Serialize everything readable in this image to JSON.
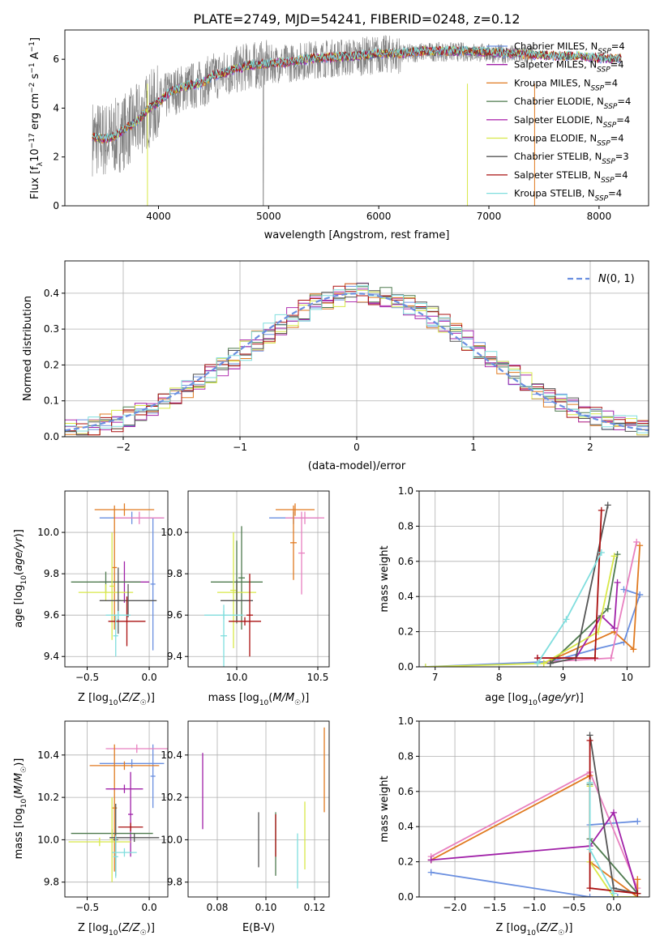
{
  "title": "PLATE=2749, MJD=54241, FIBERID=0248, z=0.12",
  "colors": {
    "chabrier_miles": "#6a8fe0",
    "salpeter_miles": "#a020a8",
    "kroupa_miles": "#e07a20",
    "chabrier_elodie": "#4e7a4e",
    "salpeter_elodie": "#b030b0",
    "kroupa_elodie": "#d8e848",
    "chabrier_stelib": "#555555",
    "salpeter_stelib": "#aa1010",
    "kroupa_stelib": "#80dede",
    "pink": "#e880c0",
    "data_grey": "#808080",
    "gauss": "#6a8fe0",
    "grid": "#b0b0b0"
  },
  "chart_data": [
    {
      "id": "spectrum",
      "type": "line",
      "title": "PLATE=2749, MJD=54241, FIBERID=0248, z=0.12",
      "xlabel": "wavelength [Angstrom, rest frame]",
      "ylabel": "Flux [f_λ 10^-17 erg cm^-2 s^-1 A^-1]",
      "xlim": [
        3150,
        8450
      ],
      "ylim": [
        0,
        7.2
      ],
      "xticks": [
        "4000",
        "5000",
        "6000",
        "7000",
        "8000"
      ],
      "yticks": [
        "0",
        "2",
        "4",
        "6"
      ],
      "grid": false,
      "legend": "upper-right",
      "legend_entries": [
        "Chabrier MILES, N_SSP=4",
        "Salpeter MILES, N_SSP=4",
        "Kroupa MILES, N_SSP=4",
        "Chabrier ELODIE, N_SSP=4",
        "Salpeter ELODIE, N_SSP=4",
        "Kroupa ELODIE, N_SSP=4",
        "Chabrier STELIB, N_SSP=3",
        "Salpeter STELIB, N_SSP=4",
        "Kroupa STELIB, N_SSP=4"
      ],
      "continuum": {
        "x": [
          3400,
          3500,
          3600,
          3700,
          3800,
          3900,
          4000,
          4100,
          4200,
          4300,
          4400,
          4500,
          4600,
          4800,
          5000,
          5200,
          5400,
          5600,
          5800,
          6000,
          6200,
          6400,
          6600,
          6800,
          7000,
          7200,
          7400,
          7600,
          7800,
          8000,
          8200
        ],
        "y": [
          2.8,
          2.7,
          2.8,
          3.1,
          3.4,
          3.9,
          4.2,
          4.6,
          4.8,
          4.9,
          5.0,
          5.3,
          5.4,
          5.7,
          5.8,
          5.85,
          6.0,
          6.05,
          6.1,
          6.2,
          6.2,
          6.3,
          6.3,
          6.3,
          6.25,
          6.2,
          6.15,
          6.1,
          6.1,
          6.0,
          6.0
        ]
      }
    },
    {
      "id": "residuals",
      "type": "bar",
      "xlabel": "(data-model)/error",
      "ylabel": "Normed distribution",
      "xlim": [
        -2.5,
        2.5
      ],
      "ylim": [
        0,
        0.49
      ],
      "xticks": [
        "−2",
        "−1",
        "0",
        "1",
        "2"
      ],
      "yticks": [
        "0.0",
        "0.1",
        "0.2",
        "0.3",
        "0.4"
      ],
      "grid": true,
      "legend": "top-right",
      "legend_entries": [
        "N(0,1)"
      ],
      "bin_width": 0.1,
      "bin_start": -2.5
    },
    {
      "id": "age-vs-Z",
      "type": "scatter",
      "xlabel": "Z [log10(Z/Z☉)]",
      "ylabel": "age [log10(age/yr)]",
      "xlim": [
        -0.68,
        0.15
      ],
      "ylim": [
        9.35,
        10.2
      ],
      "xticks": [
        "−0.5",
        "0.0"
      ],
      "yticks": [
        "9.4",
        "9.6",
        "9.8",
        "10.0"
      ],
      "grid": true,
      "points": [
        {
          "x": 0.03,
          "y": 9.75,
          "xe": 0.02,
          "ye": 0.32,
          "c": "chabrier_miles"
        },
        {
          "x": -0.14,
          "y": 10.07,
          "xe": 0.26,
          "ye": 0.03,
          "c": "chabrier_miles"
        },
        {
          "x": -0.08,
          "y": 10.07,
          "xe": 0.2,
          "ye": 0.03,
          "c": "pink"
        },
        {
          "x": -0.2,
          "y": 10.11,
          "xe": 0.24,
          "ye": 0.03,
          "c": "kroupa_miles"
        },
        {
          "x": -0.28,
          "y": 9.83,
          "xe": 0.02,
          "ye": 0.3,
          "c": "kroupa_miles"
        },
        {
          "x": -0.2,
          "y": 9.76,
          "xe": 0.2,
          "ye": 0.1,
          "c": "salpeter_miles"
        },
        {
          "x": -0.35,
          "y": 9.76,
          "xe": 0.28,
          "ye": 0.05,
          "c": "chabrier_elodie"
        },
        {
          "x": -0.3,
          "y": 9.74,
          "xe": 0.02,
          "ye": 0.26,
          "c": "kroupa_elodie"
        },
        {
          "x": -0.35,
          "y": 9.71,
          "xe": 0.22,
          "ye": 0.04,
          "c": "kroupa_elodie"
        },
        {
          "x": -0.17,
          "y": 9.67,
          "xe": 0.23,
          "ye": 0.08,
          "c": "chabrier_stelib"
        },
        {
          "x": -0.25,
          "y": 9.67,
          "xe": 0.02,
          "ye": 0.16,
          "c": "chabrier_stelib"
        },
        {
          "x": -0.18,
          "y": 9.57,
          "xe": 0.15,
          "ye": 0.12,
          "c": "salpeter_stelib"
        },
        {
          "x": -0.27,
          "y": 9.5,
          "xe": 0.02,
          "ye": 0.1,
          "c": "kroupa_stelib"
        },
        {
          "x": -0.25,
          "y": 9.6,
          "xe": 0.1,
          "ye": 0.02,
          "c": "kroupa_stelib"
        }
      ]
    },
    {
      "id": "age-vs-mass",
      "type": "scatter",
      "xlabel": "mass [log10(M/M☉)]",
      "ylabel": "",
      "xlim": [
        9.7,
        10.57
      ],
      "ylim": [
        9.35,
        10.2
      ],
      "xticks": [
        "10.0",
        "10.5"
      ],
      "yticks": [
        "9.4",
        "9.6",
        "9.8",
        "10.0"
      ],
      "grid": true,
      "points": [
        {
          "x": 10.4,
          "y": 9.9,
          "xe": 0.02,
          "ye": 0.2,
          "c": "pink"
        },
        {
          "x": 10.35,
          "y": 10.07,
          "xe": 0.15,
          "ye": 0.03,
          "c": "chabrier_miles"
        },
        {
          "x": 10.42,
          "y": 10.07,
          "xe": 0.12,
          "ye": 0.03,
          "c": "pink"
        },
        {
          "x": 10.36,
          "y": 10.11,
          "xe": 0.12,
          "ye": 0.03,
          "c": "kroupa_miles"
        },
        {
          "x": 10.35,
          "y": 9.95,
          "xe": 0.02,
          "ye": 0.18,
          "c": "kroupa_miles"
        },
        {
          "x": 10.0,
          "y": 9.76,
          "xe": 0.16,
          "ye": 0.2,
          "c": "chabrier_elodie"
        },
        {
          "x": 10.03,
          "y": 9.78,
          "xe": 0.02,
          "ye": 0.25,
          "c": "chabrier_elodie"
        },
        {
          "x": 9.98,
          "y": 9.72,
          "xe": 0.02,
          "ye": 0.28,
          "c": "kroupa_elodie"
        },
        {
          "x": 10.0,
          "y": 9.71,
          "xe": 0.12,
          "ye": 0.04,
          "c": "kroupa_elodie"
        },
        {
          "x": 10.0,
          "y": 9.67,
          "xe": 0.1,
          "ye": 0.1,
          "c": "chabrier_stelib"
        },
        {
          "x": 10.08,
          "y": 9.6,
          "xe": 0.02,
          "ye": 0.2,
          "c": "salpeter_stelib"
        },
        {
          "x": 10.05,
          "y": 9.57,
          "xe": 0.1,
          "ye": 0.02,
          "c": "salpeter_stelib"
        },
        {
          "x": 9.92,
          "y": 9.5,
          "xe": 0.02,
          "ye": 0.15,
          "c": "kroupa_stelib"
        },
        {
          "x": 9.92,
          "y": 9.6,
          "xe": 0.12,
          "ye": 0.02,
          "c": "kroupa_stelib"
        }
      ]
    },
    {
      "id": "weight-vs-age",
      "type": "line",
      "xlabel": "age [log10(age/yr)]",
      "ylabel": "mass weight",
      "xlim": [
        6.75,
        10.35
      ],
      "ylim": [
        0,
        1.0
      ],
      "xticks": [
        "7",
        "8",
        "9",
        "10"
      ],
      "yticks": [
        "0.0",
        "0.2",
        "0.4",
        "0.6",
        "0.8",
        "1.0"
      ],
      "grid": true,
      "series": [
        {
          "c": "chabrier_miles",
          "x": [
            6.85,
            8.8,
            9.5,
            9.95,
            10.2
          ],
          "y": [
            0.0,
            0.03,
            0.1,
            0.14,
            0.41
          ]
        },
        {
          "c": "chabrier_miles",
          "x": [
            9.95,
            10.2
          ],
          "y": [
            0.44,
            0.41
          ]
        },
        {
          "c": "kroupa_miles",
          "x": [
            8.7,
            9.8,
            10.1,
            10.2
          ],
          "y": [
            0.02,
            0.2,
            0.1,
            0.69
          ]
        },
        {
          "c": "pink",
          "x": [
            8.8,
            9.75,
            10.15
          ],
          "y": [
            0.03,
            0.05,
            0.71
          ]
        },
        {
          "c": "salpeter_miles",
          "x": [
            8.6,
            9.2,
            9.6,
            9.8,
            9.85
          ],
          "y": [
            0.05,
            0.05,
            0.29,
            0.22,
            0.48
          ]
        },
        {
          "c": "chabrier_elodie",
          "x": [
            8.8,
            9.7,
            9.85
          ],
          "y": [
            0.02,
            0.33,
            0.64
          ]
        },
        {
          "c": "kroupa_elodie",
          "x": [
            6.85,
            8.7,
            9.55,
            9.8
          ],
          "y": [
            0.0,
            0.02,
            0.2,
            0.63
          ]
        },
        {
          "c": "chabrier_stelib",
          "x": [
            8.8,
            9.2,
            9.7
          ],
          "y": [
            0.02,
            0.05,
            0.92
          ]
        },
        {
          "c": "salpeter_stelib",
          "x": [
            8.6,
            9.5,
            9.6
          ],
          "y": [
            0.05,
            0.05,
            0.89
          ]
        },
        {
          "c": "kroupa_stelib",
          "x": [
            8.6,
            9.05,
            9.6
          ],
          "y": [
            0.02,
            0.27,
            0.65
          ]
        }
      ]
    },
    {
      "id": "mass-vs-Z",
      "type": "scatter",
      "xlabel": "Z [log10(Z/Z☉)]",
      "ylabel": "mass [log10(M/M☉)]",
      "xlim": [
        -0.68,
        0.15
      ],
      "ylim": [
        9.73,
        10.56
      ],
      "xticks": [
        "−0.5",
        "0.0"
      ],
      "yticks": [
        "9.8",
        "10.0",
        "10.2",
        "10.4"
      ],
      "grid": true,
      "points": [
        {
          "x": 0.03,
          "y": 10.3,
          "xe": 0.02,
          "ye": 0.15,
          "c": "chabrier_miles"
        },
        {
          "x": -0.14,
          "y": 10.36,
          "xe": 0.26,
          "ye": 0.02,
          "c": "chabrier_miles"
        },
        {
          "x": -0.1,
          "y": 10.43,
          "xe": 0.25,
          "ye": 0.02,
          "c": "pink"
        },
        {
          "x": -0.2,
          "y": 10.35,
          "xe": 0.28,
          "ye": 0.02,
          "c": "kroupa_miles"
        },
        {
          "x": -0.28,
          "y": 10.15,
          "xe": 0.02,
          "ye": 0.3,
          "c": "kroupa_miles"
        },
        {
          "x": -0.2,
          "y": 10.24,
          "xe": 0.15,
          "ye": 0.02,
          "c": "salpeter_miles"
        },
        {
          "x": -0.15,
          "y": 10.12,
          "xe": 0.02,
          "ye": 0.2,
          "c": "salpeter_miles"
        },
        {
          "x": -0.3,
          "y": 10.03,
          "xe": 0.33,
          "ye": 0.02,
          "c": "chabrier_elodie"
        },
        {
          "x": -0.3,
          "y": 10.0,
          "xe": 0.02,
          "ye": 0.2,
          "c": "kroupa_elodie"
        },
        {
          "x": -0.4,
          "y": 9.99,
          "xe": 0.25,
          "ye": 0.02,
          "c": "kroupa_elodie"
        },
        {
          "x": -0.27,
          "y": 10.0,
          "xe": 0.02,
          "ye": 0.17,
          "c": "chabrier_stelib"
        },
        {
          "x": -0.12,
          "y": 10.01,
          "xe": 0.2,
          "ye": 0.02,
          "c": "chabrier_stelib"
        },
        {
          "x": -0.15,
          "y": 10.06,
          "xe": 0.1,
          "ye": 0.02,
          "c": "salpeter_stelib"
        },
        {
          "x": -0.27,
          "y": 9.92,
          "xe": 0.02,
          "ye": 0.1,
          "c": "kroupa_stelib"
        },
        {
          "x": -0.2,
          "y": 9.94,
          "xe": 0.1,
          "ye": 0.02,
          "c": "kroupa_stelib"
        }
      ]
    },
    {
      "id": "mass-vs-ebv",
      "type": "scatter",
      "xlabel": "E(B-V)",
      "ylabel": "",
      "xlim": [
        0.068,
        0.126
      ],
      "ylim": [
        9.73,
        10.56
      ],
      "xticks": [
        "0.08",
        "0.10",
        "0.12"
      ],
      "yticks": [
        "9.8",
        "10.0",
        "10.2",
        "10.4"
      ],
      "grid": true,
      "points": [
        {
          "x": 0.074,
          "y": 10.23,
          "xe": 0,
          "ye": 0.18,
          "c": "salpeter_miles"
        },
        {
          "x": 0.097,
          "y": 10.0,
          "xe": 0,
          "ye": 0.13,
          "c": "chabrier_stelib"
        },
        {
          "x": 0.104,
          "y": 9.98,
          "xe": 0,
          "ye": 0.15,
          "c": "chabrier_elodie"
        },
        {
          "x": 0.104,
          "y": 10.02,
          "xe": 0,
          "ye": 0.1,
          "c": "salpeter_stelib"
        },
        {
          "x": 0.113,
          "y": 9.9,
          "xe": 0,
          "ye": 0.13,
          "c": "kroupa_stelib"
        },
        {
          "x": 0.116,
          "y": 10.02,
          "xe": 0,
          "ye": 0.16,
          "c": "kroupa_elodie"
        },
        {
          "x": 0.124,
          "y": 10.33,
          "xe": 0,
          "ye": 0.2,
          "c": "kroupa_miles"
        }
      ]
    },
    {
      "id": "weight-vs-Z",
      "type": "line",
      "xlabel": "Z [log10(Z/Z☉)]",
      "ylabel": "mass weight",
      "xlim": [
        -2.45,
        0.45
      ],
      "ylim": [
        0,
        1.0
      ],
      "xticks": [
        "−2.0",
        "−1.5",
        "−1.0",
        "−0.5",
        "0.0"
      ],
      "yticks": [
        "0.0",
        "0.2",
        "0.4",
        "0.6",
        "0.8",
        "1.0"
      ],
      "grid": true,
      "series": [
        {
          "c": "chabrier_miles",
          "x": [
            -2.3,
            -0.3,
            0.05,
            0.3
          ],
          "y": [
            0.14,
            0.0,
            0.0,
            0.0
          ]
        },
        {
          "c": "chabrier_miles",
          "x": [
            -0.3,
            0.3
          ],
          "y": [
            0.41,
            0.43
          ]
        },
        {
          "c": "pink",
          "x": [
            -2.3,
            -0.3,
            0.3
          ],
          "y": [
            0.23,
            0.71,
            0.05
          ]
        },
        {
          "c": "kroupa_miles",
          "x": [
            -2.3,
            -0.3,
            -0.3,
            0.3,
            0.3
          ],
          "y": [
            0.21,
            0.69,
            0.2,
            0.0,
            0.1
          ]
        },
        {
          "c": "salpeter_miles",
          "x": [
            -2.3,
            -0.3,
            0.0,
            0.3
          ],
          "y": [
            0.21,
            0.29,
            0.48,
            0.02
          ]
        },
        {
          "c": "chabrier_elodie",
          "x": [
            -0.3,
            -0.3,
            0.3
          ],
          "y": [
            0.64,
            0.33,
            0.02
          ]
        },
        {
          "c": "kroupa_elodie",
          "x": [
            -0.3,
            -0.3,
            0.0,
            0.3
          ],
          "y": [
            0.63,
            0.2,
            0.0,
            0.0
          ]
        },
        {
          "c": "chabrier_stelib",
          "x": [
            -0.3,
            0.0,
            0.3
          ],
          "y": [
            0.92,
            0.05,
            0.02
          ]
        },
        {
          "c": "salpeter_stelib",
          "x": [
            -0.3,
            -0.3,
            0.3
          ],
          "y": [
            0.89,
            0.05,
            0.02
          ]
        },
        {
          "c": "kroupa_stelib",
          "x": [
            -0.3,
            -0.3,
            0.0
          ],
          "y": [
            0.65,
            0.27,
            0.02
          ]
        }
      ]
    }
  ]
}
